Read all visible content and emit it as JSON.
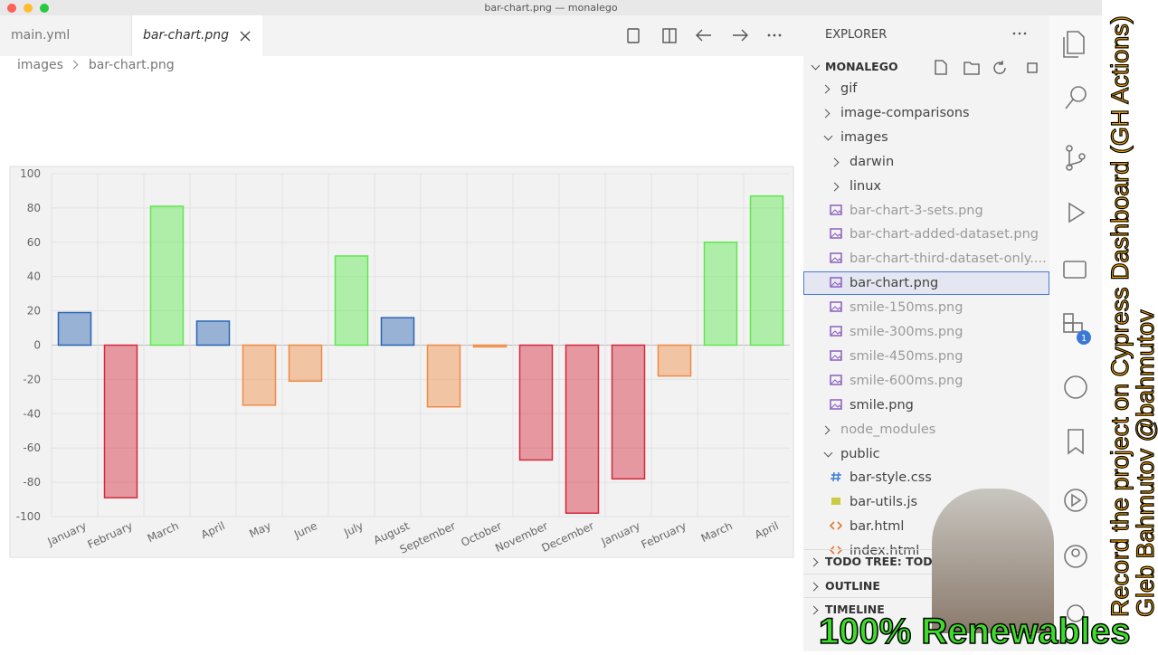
{
  "window": {
    "title": "bar-chart.png — monalego"
  },
  "tabs": [
    "main.yml",
    "bar-chart.png"
  ],
  "breadcrumb": [
    "images",
    "bar-chart.png"
  ],
  "chart": {
    "type": "bar",
    "categories": [
      "January",
      "February",
      "March",
      "April",
      "May",
      "June",
      "July",
      "August",
      "September",
      "October",
      "November",
      "December",
      "January",
      "February",
      "March",
      "April"
    ],
    "values": [
      19,
      -89,
      81,
      14,
      -35,
      -21,
      52,
      16,
      -36,
      -1,
      -67,
      -98,
      -78,
      -18,
      60,
      87
    ],
    "colors": [
      "#2a64b3",
      "#d42a3c",
      "#5ee84e",
      "#2a64b3",
      "#ef8b45",
      "#ef8b45",
      "#5ee84e",
      "#2a64b3",
      "#ef8b45",
      "#ef8b45",
      "#d42a3c",
      "#d42a3c",
      "#d42a3c",
      "#ef8b45",
      "#5ee84e",
      "#5ee84e"
    ],
    "ylim": [
      -100,
      100
    ],
    "yticks": [
      -100,
      -80,
      -60,
      -40,
      -20,
      0,
      20,
      40,
      60,
      80,
      100
    ],
    "grid": true
  },
  "explorer": {
    "title": "EXPLORER",
    "root": "MONALEGO",
    "items": [
      {
        "label": "gif",
        "depth": 1,
        "kind": "folder"
      },
      {
        "label": "image-comparisons",
        "depth": 1,
        "kind": "folder"
      },
      {
        "label": "images",
        "depth": 1,
        "kind": "folder-open"
      },
      {
        "label": "darwin",
        "depth": 2,
        "kind": "folder"
      },
      {
        "label": "linux",
        "depth": 2,
        "kind": "folder"
      },
      {
        "label": "bar-chart-3-sets.png",
        "depth": 2,
        "kind": "image",
        "dimmed": true
      },
      {
        "label": "bar-chart-added-dataset.png",
        "depth": 2,
        "kind": "image",
        "dimmed": true
      },
      {
        "label": "bar-chart-third-dataset-only....",
        "depth": 2,
        "kind": "image",
        "dimmed": true
      },
      {
        "label": "bar-chart.png",
        "depth": 2,
        "kind": "image",
        "selected": true
      },
      {
        "label": "smile-150ms.png",
        "depth": 2,
        "kind": "image",
        "dimmed": true
      },
      {
        "label": "smile-300ms.png",
        "depth": 2,
        "kind": "image",
        "dimmed": true
      },
      {
        "label": "smile-450ms.png",
        "depth": 2,
        "kind": "image",
        "dimmed": true
      },
      {
        "label": "smile-600ms.png",
        "depth": 2,
        "kind": "image",
        "dimmed": true
      },
      {
        "label": "smile.png",
        "depth": 2,
        "kind": "image"
      },
      {
        "label": "node_modules",
        "depth": 1,
        "kind": "folder",
        "dimmed": true
      },
      {
        "label": "public",
        "depth": 1,
        "kind": "folder-open"
      },
      {
        "label": "bar-style.css",
        "depth": 2,
        "kind": "css"
      },
      {
        "label": "bar-utils.js",
        "depth": 2,
        "kind": "js"
      },
      {
        "label": "bar.html",
        "depth": 2,
        "kind": "html"
      },
      {
        "label": "index.html",
        "depth": 2,
        "kind": "html"
      }
    ]
  },
  "panels": [
    "TODO TREE: TODOS",
    "OUTLINE",
    "TIMELINE"
  ],
  "badge": "1",
  "overlay": {
    "vertical": [
      "Record the project on Cypress Dashboard (GH Actions)",
      "Gleb Bahmutov @bahmutov"
    ],
    "banner": "100% Renewables"
  }
}
